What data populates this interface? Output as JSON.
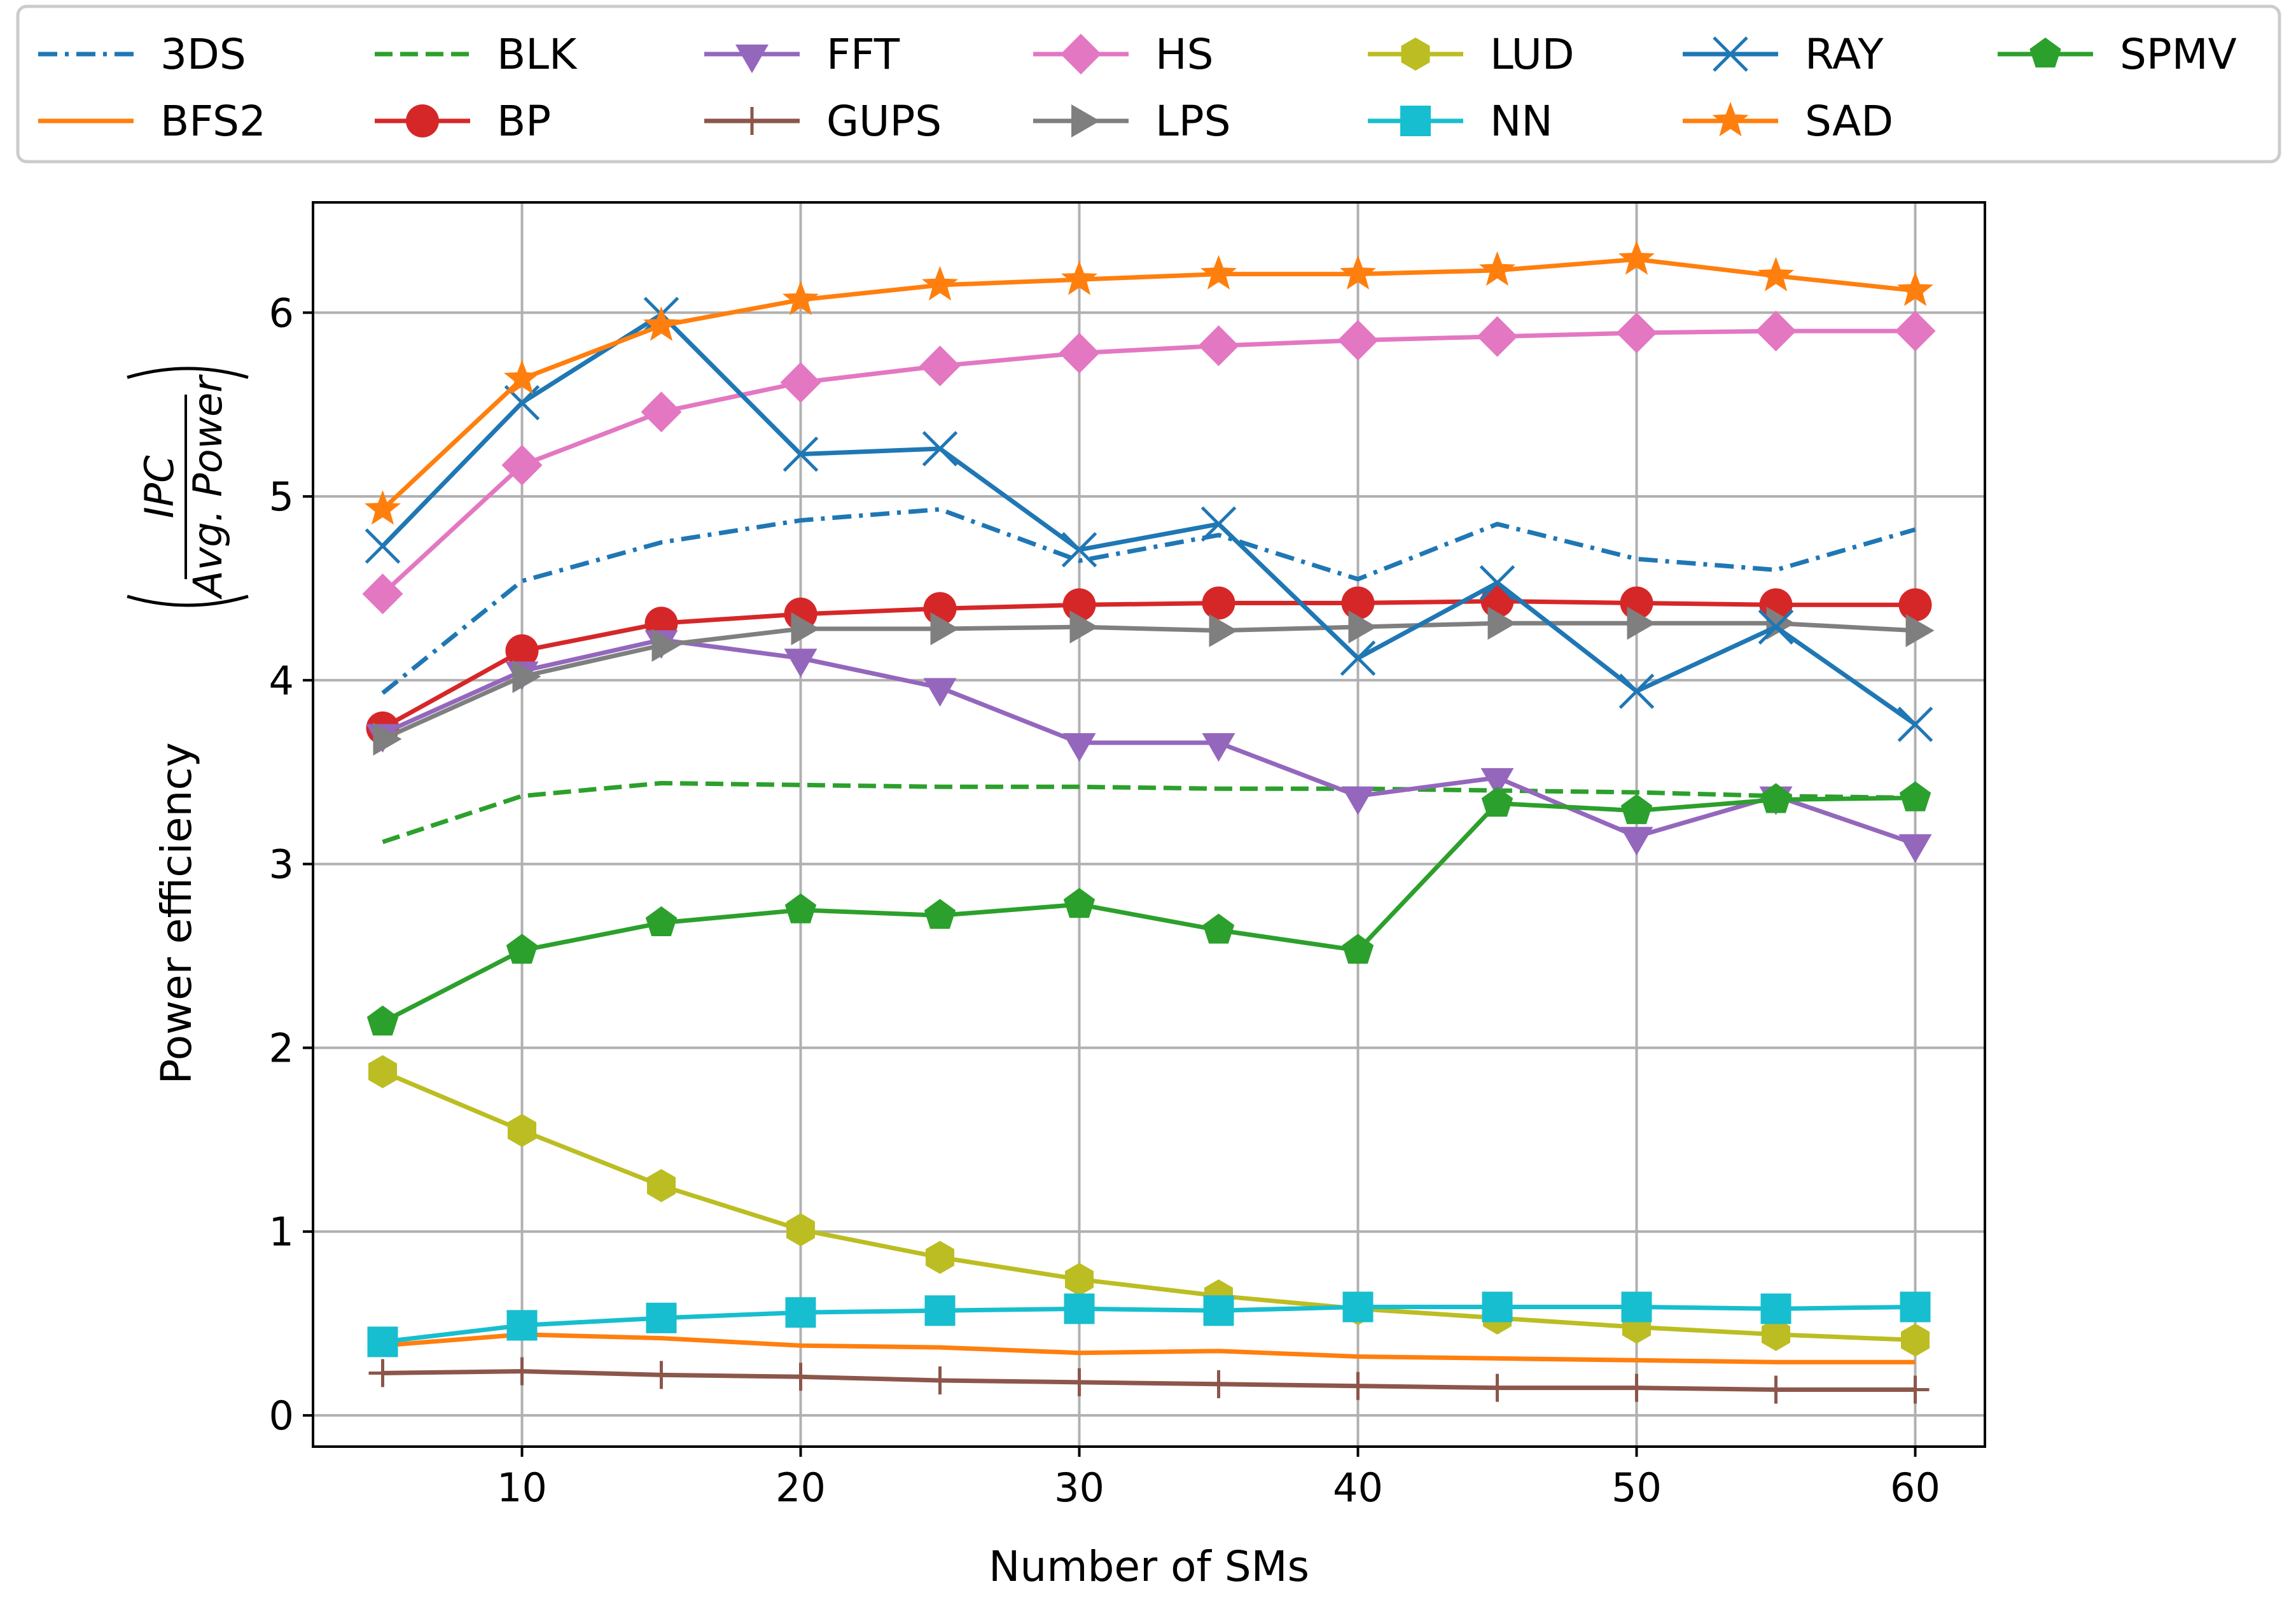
{
  "chart_data": {
    "type": "line",
    "xlabel": "Number of SMs",
    "ylabel": {
      "prefix": "Power efficiency",
      "numerator": "IPC",
      "denominator": "Avg. Power"
    },
    "x": [
      5,
      10,
      15,
      20,
      25,
      30,
      35,
      40,
      45,
      50,
      55,
      60
    ],
    "xlim": [
      2.5,
      62.5
    ],
    "ylim": [
      -0.17,
      6.6
    ],
    "xticks": [
      10,
      20,
      30,
      40,
      50,
      60
    ],
    "yticks": [
      0,
      1,
      2,
      3,
      4,
      5,
      6
    ],
    "grid": true,
    "legend_position": "top",
    "series": [
      {
        "name": "3DS",
        "color": "#1f77b4",
        "dash": "dashdot",
        "marker": "none",
        "values": [
          3.93,
          4.54,
          4.75,
          4.87,
          4.93,
          4.65,
          4.79,
          4.55,
          4.85,
          4.66,
          4.6,
          4.82
        ]
      },
      {
        "name": "BFS2",
        "color": "#ff7f0e",
        "dash": "solid",
        "marker": "none",
        "values": [
          0.38,
          0.44,
          0.42,
          0.38,
          0.37,
          0.34,
          0.35,
          0.32,
          0.31,
          0.3,
          0.29,
          0.29
        ]
      },
      {
        "name": "BLK",
        "color": "#2ca02c",
        "dash": "dashed",
        "marker": "none",
        "values": [
          3.12,
          3.37,
          3.44,
          3.43,
          3.42,
          3.42,
          3.41,
          3.41,
          3.4,
          3.39,
          3.37,
          3.36
        ]
      },
      {
        "name": "BP",
        "color": "#d62728",
        "dash": "solid",
        "marker": "circle",
        "values": [
          3.74,
          4.16,
          4.31,
          4.36,
          4.39,
          4.41,
          4.42,
          4.42,
          4.43,
          4.42,
          4.41,
          4.41
        ]
      },
      {
        "name": "FFT",
        "color": "#9467bd",
        "dash": "solid",
        "marker": "triangle-down",
        "values": [
          3.71,
          4.05,
          4.22,
          4.12,
          3.96,
          3.66,
          3.66,
          3.37,
          3.47,
          3.15,
          3.37,
          3.11
        ]
      },
      {
        "name": "GUPS",
        "color": "#8c564b",
        "dash": "solid",
        "marker": "plus",
        "values": [
          0.23,
          0.24,
          0.22,
          0.21,
          0.19,
          0.18,
          0.17,
          0.16,
          0.15,
          0.15,
          0.14,
          0.14
        ]
      },
      {
        "name": "HS",
        "color": "#e377c2",
        "dash": "solid",
        "marker": "diamond",
        "values": [
          4.47,
          5.17,
          5.46,
          5.62,
          5.71,
          5.78,
          5.82,
          5.85,
          5.87,
          5.89,
          5.9,
          5.9
        ]
      },
      {
        "name": "LPS",
        "color": "#7f7f7f",
        "dash": "solid",
        "marker": "triangle-right",
        "values": [
          3.68,
          4.02,
          4.19,
          4.28,
          4.28,
          4.29,
          4.27,
          4.29,
          4.31,
          4.31,
          4.31,
          4.27
        ]
      },
      {
        "name": "LUD",
        "color": "#bcbd22",
        "dash": "solid",
        "marker": "hexagon",
        "values": [
          1.87,
          1.55,
          1.25,
          1.01,
          0.86,
          0.74,
          0.65,
          0.58,
          0.53,
          0.48,
          0.44,
          0.41
        ]
      },
      {
        "name": "NN",
        "color": "#17becf",
        "dash": "solid",
        "marker": "square",
        "values": [
          0.4,
          0.49,
          0.53,
          0.56,
          0.57,
          0.58,
          0.57,
          0.59,
          0.59,
          0.59,
          0.58,
          0.59
        ]
      },
      {
        "name": "RAY",
        "color": "#1f77b4",
        "dash": "solid",
        "marker": "x",
        "values": [
          4.73,
          5.51,
          5.99,
          5.23,
          5.26,
          4.71,
          4.85,
          4.12,
          4.53,
          3.94,
          4.29,
          3.76
        ]
      },
      {
        "name": "SAD",
        "color": "#ff7f0e",
        "dash": "solid",
        "marker": "star",
        "values": [
          4.93,
          5.64,
          5.93,
          6.07,
          6.15,
          6.18,
          6.21,
          6.21,
          6.23,
          6.29,
          6.2,
          6.12
        ]
      },
      {
        "name": "SPMV",
        "color": "#2ca02c",
        "dash": "solid",
        "marker": "pentagon",
        "values": [
          2.14,
          2.53,
          2.68,
          2.75,
          2.72,
          2.78,
          2.64,
          2.53,
          3.33,
          3.29,
          3.35,
          3.36
        ]
      }
    ]
  }
}
